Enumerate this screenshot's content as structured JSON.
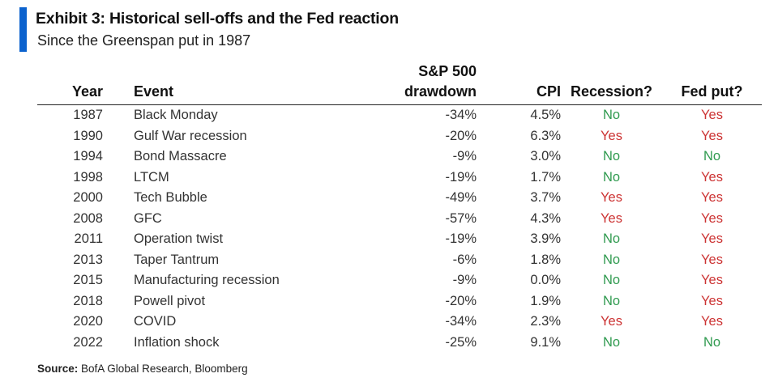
{
  "header": {
    "title": "Exhibit 3: Historical sell-offs and the Fed reaction",
    "subtitle": "Since the Greenspan put in 1987",
    "accent_color": "#0b62ce"
  },
  "table": {
    "columns": {
      "year": "Year",
      "event": "Event",
      "drawdown_line1": "S&P 500",
      "drawdown_line2": "drawdown",
      "cpi": "CPI",
      "recession": "Recession?",
      "fed_put": "Fed put?"
    },
    "yes_color": "#cc3333",
    "no_color": "#2f9a4f",
    "rows": [
      {
        "year": "1987",
        "event": "Black Monday",
        "drawdown": "-34%",
        "cpi": "4.5%",
        "recession": "No",
        "fed_put": "Yes"
      },
      {
        "year": "1990",
        "event": "Gulf War recession",
        "drawdown": "-20%",
        "cpi": "6.3%",
        "recession": "Yes",
        "fed_put": "Yes"
      },
      {
        "year": "1994",
        "event": "Bond Massacre",
        "drawdown": "-9%",
        "cpi": "3.0%",
        "recession": "No",
        "fed_put": "No"
      },
      {
        "year": "1998",
        "event": "LTCM",
        "drawdown": "-19%",
        "cpi": "1.7%",
        "recession": "No",
        "fed_put": "Yes"
      },
      {
        "year": "2000",
        "event": "Tech Bubble",
        "drawdown": "-49%",
        "cpi": "3.7%",
        "recession": "Yes",
        "fed_put": "Yes"
      },
      {
        "year": "2008",
        "event": "GFC",
        "drawdown": "-57%",
        "cpi": "4.3%",
        "recession": "Yes",
        "fed_put": "Yes"
      },
      {
        "year": "2011",
        "event": "Operation twist",
        "drawdown": "-19%",
        "cpi": "3.9%",
        "recession": "No",
        "fed_put": "Yes"
      },
      {
        "year": "2013",
        "event": "Taper Tantrum",
        "drawdown": "-6%",
        "cpi": "1.8%",
        "recession": "No",
        "fed_put": "Yes"
      },
      {
        "year": "2015",
        "event": "Manufacturing recession",
        "drawdown": "-9%",
        "cpi": "0.0%",
        "recession": "No",
        "fed_put": "Yes"
      },
      {
        "year": "2018",
        "event": "Powell pivot",
        "drawdown": "-20%",
        "cpi": "1.9%",
        "recession": "No",
        "fed_put": "Yes"
      },
      {
        "year": "2020",
        "event": "COVID",
        "drawdown": "-34%",
        "cpi": "2.3%",
        "recession": "Yes",
        "fed_put": "Yes"
      },
      {
        "year": "2022",
        "event": "Inflation shock",
        "drawdown": "-25%",
        "cpi": "9.1%",
        "recession": "No",
        "fed_put": "No"
      }
    ]
  },
  "footer": {
    "source_label": "Source:",
    "source_text": "BofA Global Research, Bloomberg"
  }
}
